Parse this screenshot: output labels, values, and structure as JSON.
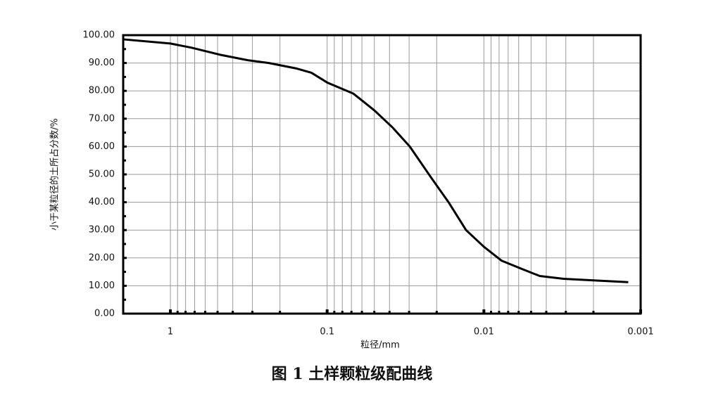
{
  "chart_data": {
    "type": "line",
    "caption": "图 1  土样颗粒级配曲线",
    "xlabel": "粒径/mm",
    "ylabel": "小于某粒径的土所占分数/%",
    "xscale": "log",
    "xlim": [
      2,
      0.001
    ],
    "xticks": [
      1,
      0.1,
      0.01,
      0.001
    ],
    "xminorticks": [
      0.9,
      0.8,
      0.7,
      0.6,
      0.5,
      0.4,
      0.3,
      0.2,
      0.09,
      0.08,
      0.07,
      0.06,
      0.05,
      0.04,
      0.03,
      0.02,
      0.009,
      0.008,
      0.007,
      0.006,
      0.005,
      0.004,
      0.003,
      0.002
    ],
    "ylim": [
      0,
      100
    ],
    "yticks": [
      {
        "value": 0,
        "label": "0.00"
      },
      {
        "value": 10,
        "label": "10.00"
      },
      {
        "value": 20,
        "label": "20.00"
      },
      {
        "value": 30,
        "label": "30.00"
      },
      {
        "value": 40,
        "label": "40.00"
      },
      {
        "value": 50,
        "label": "50.00"
      },
      {
        "value": 60,
        "label": "60.00"
      },
      {
        "value": 70,
        "label": "70.00"
      },
      {
        "value": 80,
        "label": "80.00"
      },
      {
        "value": 90,
        "label": "90.00"
      },
      {
        "value": 100,
        "label": "100.00"
      }
    ],
    "yminorticks": [
      5,
      15,
      25,
      35,
      45,
      55,
      65,
      75,
      85,
      95
    ],
    "grid": true,
    "color": "#000000",
    "x": [
      2,
      1,
      0.733,
      0.485,
      0.321,
      0.235,
      0.156,
      0.126,
      0.1,
      0.068,
      0.05,
      0.0385,
      0.0297,
      0.0218,
      0.0168,
      0.013,
      0.01,
      0.0077,
      0.0057,
      0.0044,
      0.0031,
      0.0018,
      0.0012
    ],
    "values": [
      98.5,
      97,
      95.5,
      93,
      91,
      90,
      88,
      86.5,
      83,
      79,
      73,
      67,
      60,
      49,
      40,
      30,
      24,
      19,
      16,
      13.5,
      12.5,
      11.8,
      11.3
    ]
  }
}
